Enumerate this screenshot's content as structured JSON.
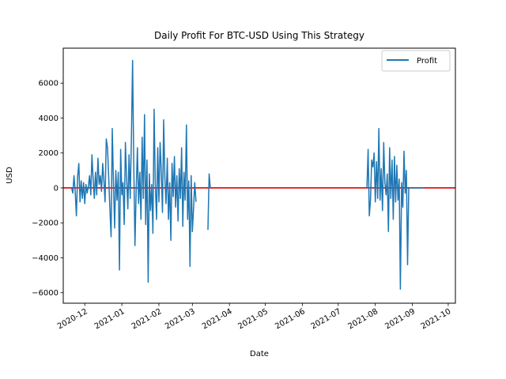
{
  "chart_data": {
    "type": "line",
    "title": "Daily Profit For BTC-USD Using This Strategy",
    "xlabel": "Date",
    "ylabel": "USD",
    "legend": {
      "position": "top-right",
      "entries": [
        "Profit"
      ]
    },
    "grid": false,
    "xlim": [
      "2020-11-13",
      "2021-10-07"
    ],
    "ylim": [
      -6600,
      8000
    ],
    "xticks": [
      {
        "date": "2020-12-01",
        "label": "2020-12"
      },
      {
        "date": "2021-01-01",
        "label": "2021-01"
      },
      {
        "date": "2021-02-01",
        "label": "2021-02"
      },
      {
        "date": "2021-03-01",
        "label": "2021-03"
      },
      {
        "date": "2021-04-01",
        "label": "2021-04"
      },
      {
        "date": "2021-05-01",
        "label": "2021-05"
      },
      {
        "date": "2021-06-01",
        "label": "2021-06"
      },
      {
        "date": "2021-07-01",
        "label": "2021-07"
      },
      {
        "date": "2021-08-01",
        "label": "2021-08"
      },
      {
        "date": "2021-09-01",
        "label": "2021-09"
      },
      {
        "date": "2021-10-01",
        "label": "2021-10"
      }
    ],
    "yticks": [
      {
        "value": -6000,
        "label": "−6000"
      },
      {
        "value": -4000,
        "label": "−4000"
      },
      {
        "value": -2000,
        "label": "−2000"
      },
      {
        "value": 0,
        "label": "0"
      },
      {
        "value": 2000,
        "label": "2000"
      },
      {
        "value": 4000,
        "label": "4000"
      },
      {
        "value": 6000,
        "label": "6000"
      }
    ],
    "reference_line": {
      "y": 0,
      "color": "#e00000"
    },
    "series": [
      {
        "name": "Profit",
        "color": "#1f77b4",
        "segments": [
          [
            [
              "2020-11-20",
              0
            ],
            [
              "2020-11-21",
              -300
            ],
            [
              "2020-11-22",
              700
            ],
            [
              "2020-11-23",
              -200
            ],
            [
              "2020-11-24",
              -1600
            ],
            [
              "2020-11-25",
              600
            ],
            [
              "2020-11-26",
              1400
            ],
            [
              "2020-11-27",
              -800
            ],
            [
              "2020-11-28",
              400
            ],
            [
              "2020-11-29",
              -600
            ],
            [
              "2020-11-30",
              300
            ],
            [
              "2020-12-01",
              -900
            ],
            [
              "2020-12-02",
              200
            ],
            [
              "2020-12-03",
              -300
            ],
            [
              "2020-12-04",
              100
            ],
            [
              "2020-12-05",
              700
            ],
            [
              "2020-12-06",
              -400
            ],
            [
              "2020-12-07",
              1900
            ],
            [
              "2020-12-08",
              500
            ],
            [
              "2020-12-09",
              -600
            ],
            [
              "2020-12-10",
              900
            ],
            [
              "2020-12-11",
              -400
            ],
            [
              "2020-12-12",
              1700
            ],
            [
              "2020-12-13",
              200
            ],
            [
              "2020-12-14",
              700
            ],
            [
              "2020-12-15",
              -200
            ],
            [
              "2020-12-16",
              1400
            ],
            [
              "2020-12-17",
              400
            ],
            [
              "2020-12-18",
              -800
            ],
            [
              "2020-12-19",
              2800
            ],
            [
              "2020-12-20",
              2300
            ],
            [
              "2020-12-21",
              600
            ],
            [
              "2020-12-22",
              -1200
            ],
            [
              "2020-12-23",
              -2800
            ],
            [
              "2020-12-24",
              3400
            ],
            [
              "2020-12-25",
              300
            ],
            [
              "2020-12-26",
              -2300
            ],
            [
              "2020-12-27",
              1000
            ],
            [
              "2020-12-28",
              -700
            ],
            [
              "2020-12-29",
              900
            ],
            [
              "2020-12-30",
              -4700
            ],
            [
              "2020-12-31",
              2200
            ],
            [
              "2021-01-01",
              -400
            ],
            [
              "2021-01-02",
              300
            ],
            [
              "2021-01-03",
              -2100
            ],
            [
              "2021-01-04",
              2600
            ],
            [
              "2021-01-05",
              600
            ],
            [
              "2021-01-06",
              -1200
            ],
            [
              "2021-01-07",
              1900
            ],
            [
              "2021-01-08",
              -600
            ],
            [
              "2021-01-09",
              2800
            ],
            [
              "2021-01-10",
              7300
            ],
            [
              "2021-01-11",
              1300
            ],
            [
              "2021-01-12",
              -3300
            ],
            [
              "2021-01-13",
              -200
            ],
            [
              "2021-01-14",
              2300
            ],
            [
              "2021-01-15",
              -900
            ],
            [
              "2021-01-16",
              900
            ],
            [
              "2021-01-17",
              -1800
            ],
            [
              "2021-01-18",
              2900
            ],
            [
              "2021-01-19",
              -600
            ],
            [
              "2021-01-20",
              4200
            ],
            [
              "2021-01-21",
              -2100
            ],
            [
              "2021-01-22",
              1600
            ],
            [
              "2021-01-23",
              -5400
            ],
            [
              "2021-01-24",
              800
            ],
            [
              "2021-01-25",
              -1300
            ],
            [
              "2021-01-26",
              200
            ],
            [
              "2021-01-27",
              -2600
            ],
            [
              "2021-01-28",
              4500
            ],
            [
              "2021-01-29",
              300
            ],
            [
              "2021-01-30",
              -1800
            ],
            [
              "2021-01-31",
              2300
            ],
            [
              "2021-02-01",
              -800
            ],
            [
              "2021-02-02",
              2600
            ],
            [
              "2021-02-03",
              900
            ],
            [
              "2021-02-04",
              -1400
            ],
            [
              "2021-02-05",
              3900
            ],
            [
              "2021-02-06",
              600
            ],
            [
              "2021-02-07",
              -900
            ],
            [
              "2021-02-08",
              1700
            ],
            [
              "2021-02-09",
              -1800
            ],
            [
              "2021-02-10",
              300
            ],
            [
              "2021-02-11",
              -3000
            ],
            [
              "2021-02-12",
              1400
            ],
            [
              "2021-02-13",
              -500
            ],
            [
              "2021-02-14",
              1800
            ],
            [
              "2021-02-15",
              -1100
            ],
            [
              "2021-02-16",
              700
            ],
            [
              "2021-02-17",
              -1900
            ],
            [
              "2021-02-18",
              1100
            ],
            [
              "2021-02-19",
              -600
            ],
            [
              "2021-02-20",
              2300
            ],
            [
              "2021-02-21",
              -2200
            ],
            [
              "2021-02-22",
              900
            ],
            [
              "2021-02-23",
              -700
            ],
            [
              "2021-02-24",
              3600
            ],
            [
              "2021-02-25",
              -1800
            ],
            [
              "2021-02-26",
              400
            ],
            [
              "2021-02-27",
              -4500
            ],
            [
              "2021-02-28",
              700
            ],
            [
              "2021-03-01",
              -2500
            ],
            [
              "2021-03-02",
              -1200
            ],
            [
              "2021-03-03",
              300
            ],
            [
              "2021-03-04",
              -800
            ]
          ],
          [
            [
              "2021-03-14",
              -2400
            ],
            [
              "2021-03-15",
              800
            ],
            [
              "2021-03-16",
              0
            ]
          ],
          [
            [
              "2021-07-25",
              0
            ],
            [
              "2021-07-26",
              2200
            ],
            [
              "2021-07-27",
              -1600
            ],
            [
              "2021-07-28",
              -700
            ],
            [
              "2021-07-29",
              1600
            ],
            [
              "2021-07-30",
              1200
            ],
            [
              "2021-07-31",
              2000
            ],
            [
              "2021-08-01",
              -800
            ],
            [
              "2021-08-02",
              1500
            ],
            [
              "2021-08-03",
              -600
            ],
            [
              "2021-08-04",
              3400
            ],
            [
              "2021-08-05",
              -700
            ],
            [
              "2021-08-06",
              1100
            ],
            [
              "2021-08-07",
              -1300
            ],
            [
              "2021-08-08",
              2600
            ],
            [
              "2021-08-09",
              300
            ],
            [
              "2021-08-10",
              -400
            ],
            [
              "2021-08-11",
              800
            ],
            [
              "2021-08-12",
              -2500
            ],
            [
              "2021-08-13",
              2300
            ],
            [
              "2021-08-14",
              -600
            ],
            [
              "2021-08-15",
              1600
            ],
            [
              "2021-08-16",
              -1800
            ],
            [
              "2021-08-17",
              1800
            ],
            [
              "2021-08-18",
              -800
            ],
            [
              "2021-08-19",
              1300
            ],
            [
              "2021-08-20",
              -700
            ],
            [
              "2021-08-21",
              500
            ],
            [
              "2021-08-22",
              -5800
            ],
            [
              "2021-08-23",
              300
            ],
            [
              "2021-08-24",
              -1100
            ],
            [
              "2021-08-25",
              2100
            ],
            [
              "2021-08-26",
              -300
            ],
            [
              "2021-08-27",
              1000
            ],
            [
              "2021-08-28",
              -4400
            ],
            [
              "2021-08-29",
              0
            ]
          ],
          [
            [
              "2021-08-30",
              0
            ],
            [
              "2021-09-05",
              0
            ],
            [
              "2021-09-10",
              0
            ]
          ]
        ]
      }
    ]
  }
}
